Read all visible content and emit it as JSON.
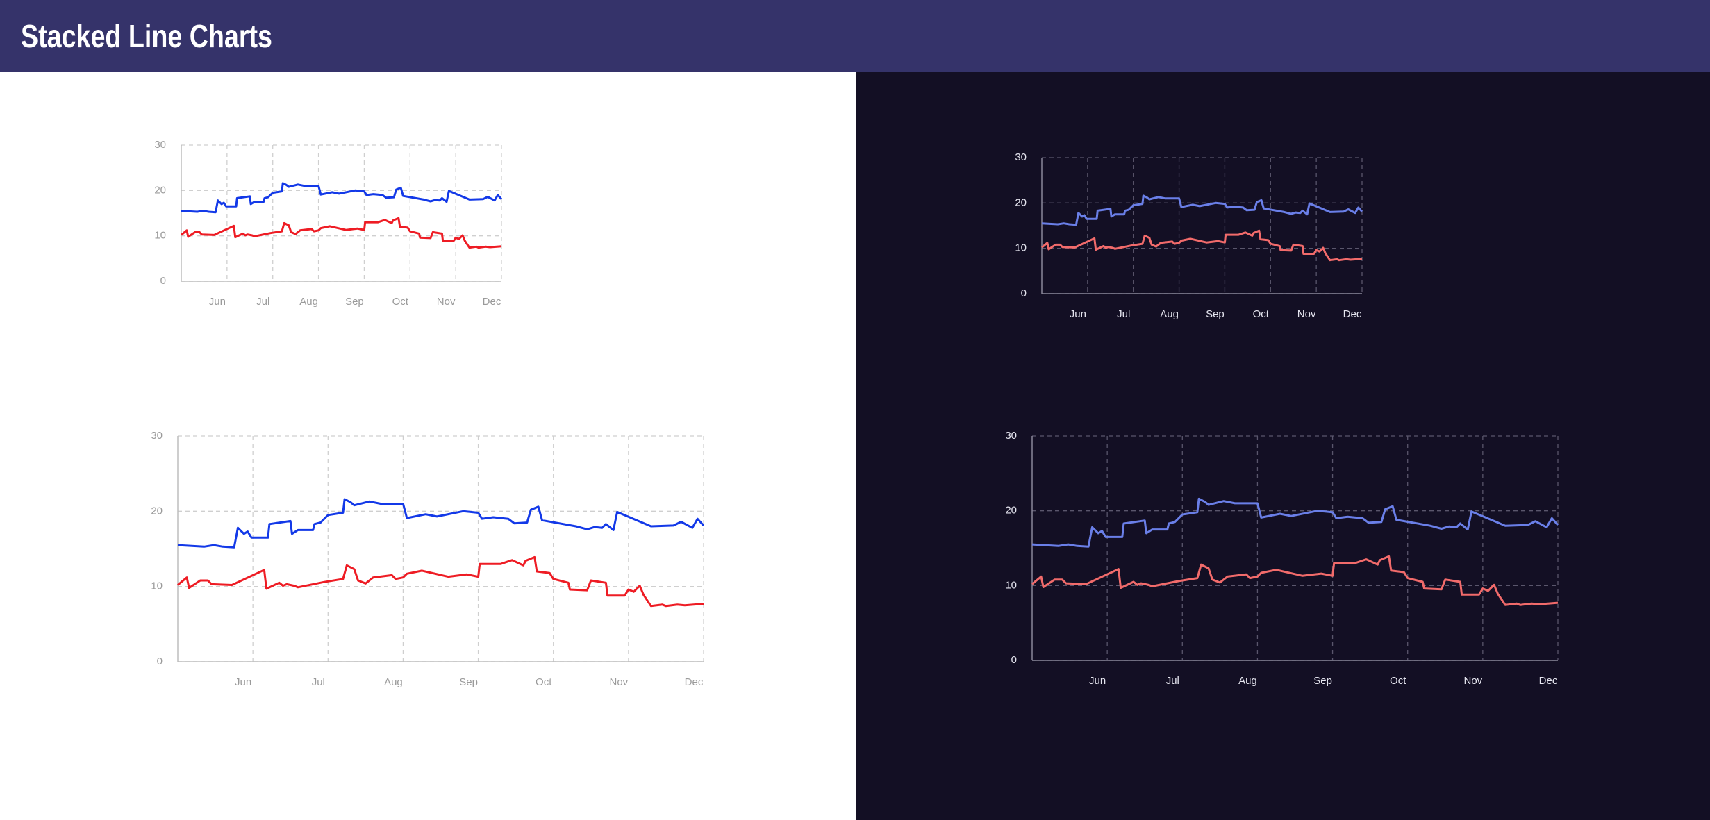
{
  "header": {
    "title": "Stacked Line Charts"
  },
  "chart_data": [
    {
      "type": "line",
      "xlim": [
        5,
        12
      ],
      "ylim": [
        0,
        30
      ],
      "yticks": [
        0,
        10,
        20,
        30
      ],
      "grid": true,
      "xticks": [
        {
          "value": 6,
          "label": "Jun"
        },
        {
          "value": 7,
          "label": "Jul"
        },
        {
          "value": 8,
          "label": "Aug"
        },
        {
          "value": 9,
          "label": "Sep"
        },
        {
          "value": 10,
          "label": "Oct"
        },
        {
          "value": 11,
          "label": "Nov"
        },
        {
          "value": 12,
          "label": "Dec"
        }
      ],
      "series": [
        {
          "color": "#1339e8",
          "x": [
            5,
            5.35,
            5.48,
            5.6,
            5.75,
            5.8,
            5.88,
            5.93,
            5.98,
            6.2,
            6.22,
            6.5,
            6.52,
            6.6,
            6.8,
            6.82,
            6.9,
            7,
            7.2,
            7.22,
            7.3,
            7.35,
            7.55,
            7.7,
            8,
            8.05,
            8.3,
            8.45,
            8.8,
            9,
            9.05,
            9.2,
            9.4,
            9.48,
            9.65,
            9.7,
            9.8,
            9.85,
            10.3,
            10.45,
            10.55,
            10.65,
            10.7,
            10.8,
            10.85,
            11.3,
            11.6,
            11.7,
            11.85,
            11.92,
            12
          ],
          "values": [
            15.5,
            15.3,
            15.5,
            15.3,
            15.2,
            17.8,
            17,
            17.3,
            16.5,
            16.5,
            18.3,
            18.7,
            17,
            17.5,
            17.5,
            18.3,
            18.5,
            19.5,
            19.8,
            21.6,
            21.2,
            20.8,
            21.3,
            21,
            21,
            19.1,
            19.6,
            19.3,
            20,
            19.8,
            19,
            19.2,
            19,
            18.4,
            18.5,
            20.2,
            20.6,
            18.8,
            18,
            17.6,
            17.9,
            17.8,
            18.3,
            17.5,
            19.9,
            18,
            18.1,
            18.6,
            17.8,
            19,
            18.1
          ]
        },
        {
          "color": "#ee1c24",
          "x": [
            5,
            5.12,
            5.15,
            5.3,
            5.4,
            5.45,
            5.72,
            6.15,
            6.18,
            6.35,
            6.4,
            6.45,
            6.55,
            6.6,
            6.95,
            7.2,
            7.25,
            7.35,
            7.4,
            7.5,
            7.6,
            7.85,
            7.9,
            8,
            8.05,
            8.25,
            8.6,
            8.85,
            9,
            9.02,
            9.3,
            9.45,
            9.6,
            9.63,
            9.75,
            9.78,
            9.95,
            10,
            10.2,
            10.22,
            10.45,
            10.5,
            10.7,
            10.72,
            10.95,
            11,
            11.07,
            11.15,
            11.2,
            11.3,
            11.45,
            11.5,
            11.65,
            11.75,
            12
          ],
          "values": [
            10.2,
            11.2,
            9.8,
            10.8,
            10.8,
            10.3,
            10.2,
            12.2,
            9.7,
            10.5,
            10.1,
            10.3,
            10.1,
            9.9,
            10.6,
            11,
            12.8,
            12.3,
            10.8,
            10.4,
            11.2,
            11.5,
            11,
            11.2,
            11.7,
            12.1,
            11.3,
            11.6,
            11.3,
            13,
            13,
            13.5,
            12.8,
            13.4,
            13.9,
            12,
            11.8,
            11,
            10.5,
            9.6,
            9.5,
            10.8,
            10.5,
            8.8,
            8.8,
            9.6,
            9.3,
            10.1,
            8.9,
            7.4,
            7.6,
            7.4,
            7.6,
            7.5,
            7.7
          ]
        }
      ]
    },
    {
      "type": "line",
      "xlim": [
        5,
        12
      ],
      "ylim": [
        0,
        30
      ],
      "yticks": [
        0,
        10,
        20,
        30
      ],
      "grid": true,
      "xticks": [
        {
          "value": 6,
          "label": "Jun"
        },
        {
          "value": 7,
          "label": "Jul"
        },
        {
          "value": 8,
          "label": "Aug"
        },
        {
          "value": 9,
          "label": "Sep"
        },
        {
          "value": 10,
          "label": "Oct"
        },
        {
          "value": 11,
          "label": "Nov"
        },
        {
          "value": 12,
          "label": "Dec"
        }
      ],
      "series": [
        {
          "color": "#1339e8",
          "x": [
            5,
            5.35,
            5.48,
            5.6,
            5.75,
            5.8,
            5.88,
            5.93,
            5.98,
            6.2,
            6.22,
            6.5,
            6.52,
            6.6,
            6.8,
            6.82,
            6.9,
            7,
            7.2,
            7.22,
            7.3,
            7.35,
            7.55,
            7.7,
            8,
            8.05,
            8.3,
            8.45,
            8.8,
            9,
            9.05,
            9.2,
            9.4,
            9.48,
            9.65,
            9.7,
            9.8,
            9.85,
            10.3,
            10.45,
            10.55,
            10.65,
            10.7,
            10.8,
            10.85,
            11.3,
            11.6,
            11.7,
            11.85,
            11.92,
            12
          ],
          "values": [
            15.5,
            15.3,
            15.5,
            15.3,
            15.2,
            17.8,
            17,
            17.3,
            16.5,
            16.5,
            18.3,
            18.7,
            17,
            17.5,
            17.5,
            18.3,
            18.5,
            19.5,
            19.8,
            21.6,
            21.2,
            20.8,
            21.3,
            21,
            21,
            19.1,
            19.6,
            19.3,
            20,
            19.8,
            19,
            19.2,
            19,
            18.4,
            18.5,
            20.2,
            20.6,
            18.8,
            18,
            17.6,
            17.9,
            17.8,
            18.3,
            17.5,
            19.9,
            18,
            18.1,
            18.6,
            17.8,
            19,
            18.1
          ]
        },
        {
          "color": "#ee1c24",
          "x": [
            5,
            5.12,
            5.15,
            5.3,
            5.4,
            5.45,
            5.72,
            6.15,
            6.18,
            6.35,
            6.4,
            6.45,
            6.55,
            6.6,
            6.95,
            7.2,
            7.25,
            7.35,
            7.4,
            7.5,
            7.6,
            7.85,
            7.9,
            8,
            8.05,
            8.25,
            8.6,
            8.85,
            9,
            9.02,
            9.3,
            9.45,
            9.6,
            9.63,
            9.75,
            9.78,
            9.95,
            10,
            10.2,
            10.22,
            10.45,
            10.5,
            10.7,
            10.72,
            10.95,
            11,
            11.07,
            11.15,
            11.2,
            11.3,
            11.45,
            11.5,
            11.65,
            11.75,
            12
          ],
          "values": [
            10.2,
            11.2,
            9.8,
            10.8,
            10.8,
            10.3,
            10.2,
            12.2,
            9.7,
            10.5,
            10.1,
            10.3,
            10.1,
            9.9,
            10.6,
            11,
            12.8,
            12.3,
            10.8,
            10.4,
            11.2,
            11.5,
            11,
            11.2,
            11.7,
            12.1,
            11.3,
            11.6,
            11.3,
            13,
            13,
            13.5,
            12.8,
            13.4,
            13.9,
            12,
            11.8,
            11,
            10.5,
            9.6,
            9.5,
            10.8,
            10.5,
            8.8,
            8.8,
            9.6,
            9.3,
            10.1,
            8.9,
            7.4,
            7.6,
            7.4,
            7.6,
            7.5,
            7.7
          ]
        }
      ]
    },
    {
      "type": "line",
      "xlim": [
        5,
        12
      ],
      "ylim": [
        0,
        30
      ],
      "yticks": [
        0,
        10,
        20,
        30
      ],
      "grid": true,
      "xticks": [
        {
          "value": 6,
          "label": "Jun"
        },
        {
          "value": 7,
          "label": "Jul"
        },
        {
          "value": 8,
          "label": "Aug"
        },
        {
          "value": 9,
          "label": "Sep"
        },
        {
          "value": 10,
          "label": "Oct"
        },
        {
          "value": 11,
          "label": "Nov"
        },
        {
          "value": 12,
          "label": "Dec"
        }
      ],
      "series": [
        {
          "color": "#6a7fe8",
          "x": [
            5,
            5.35,
            5.48,
            5.6,
            5.75,
            5.8,
            5.88,
            5.93,
            5.98,
            6.2,
            6.22,
            6.5,
            6.52,
            6.6,
            6.8,
            6.82,
            6.9,
            7,
            7.2,
            7.22,
            7.3,
            7.35,
            7.55,
            7.7,
            8,
            8.05,
            8.3,
            8.45,
            8.8,
            9,
            9.05,
            9.2,
            9.4,
            9.48,
            9.65,
            9.7,
            9.8,
            9.85,
            10.3,
            10.45,
            10.55,
            10.65,
            10.7,
            10.8,
            10.85,
            11.3,
            11.6,
            11.7,
            11.85,
            11.92,
            12
          ],
          "values": [
            15.5,
            15.3,
            15.5,
            15.3,
            15.2,
            17.8,
            17,
            17.3,
            16.5,
            16.5,
            18.3,
            18.7,
            17,
            17.5,
            17.5,
            18.3,
            18.5,
            19.5,
            19.8,
            21.6,
            21.2,
            20.8,
            21.3,
            21,
            21,
            19.1,
            19.6,
            19.3,
            20,
            19.8,
            19,
            19.2,
            19,
            18.4,
            18.5,
            20.2,
            20.6,
            18.8,
            18,
            17.6,
            17.9,
            17.8,
            18.3,
            17.5,
            19.9,
            18,
            18.1,
            18.6,
            17.8,
            19,
            18.1
          ]
        },
        {
          "color": "#f26b6b",
          "x": [
            5,
            5.12,
            5.15,
            5.3,
            5.4,
            5.45,
            5.72,
            6.15,
            6.18,
            6.35,
            6.4,
            6.45,
            6.55,
            6.6,
            6.95,
            7.2,
            7.25,
            7.35,
            7.4,
            7.5,
            7.6,
            7.85,
            7.9,
            8,
            8.05,
            8.25,
            8.6,
            8.85,
            9,
            9.02,
            9.3,
            9.45,
            9.6,
            9.63,
            9.75,
            9.78,
            9.95,
            10,
            10.2,
            10.22,
            10.45,
            10.5,
            10.7,
            10.72,
            10.95,
            11,
            11.07,
            11.15,
            11.2,
            11.3,
            11.45,
            11.5,
            11.65,
            11.75,
            12
          ],
          "values": [
            10.2,
            11.2,
            9.8,
            10.8,
            10.8,
            10.3,
            10.2,
            12.2,
            9.7,
            10.5,
            10.1,
            10.3,
            10.1,
            9.9,
            10.6,
            11,
            12.8,
            12.3,
            10.8,
            10.4,
            11.2,
            11.5,
            11,
            11.2,
            11.7,
            12.1,
            11.3,
            11.6,
            11.3,
            13,
            13,
            13.5,
            12.8,
            13.4,
            13.9,
            12,
            11.8,
            11,
            10.5,
            9.6,
            9.5,
            10.8,
            10.5,
            8.8,
            8.8,
            9.6,
            9.3,
            10.1,
            8.9,
            7.4,
            7.6,
            7.4,
            7.6,
            7.5,
            7.7
          ]
        }
      ]
    },
    {
      "type": "line",
      "xlim": [
        5,
        12
      ],
      "ylim": [
        0,
        30
      ],
      "yticks": [
        0,
        10,
        20,
        30
      ],
      "grid": true,
      "xticks": [
        {
          "value": 6,
          "label": "Jun"
        },
        {
          "value": 7,
          "label": "Jul"
        },
        {
          "value": 8,
          "label": "Aug"
        },
        {
          "value": 9,
          "label": "Sep"
        },
        {
          "value": 10,
          "label": "Oct"
        },
        {
          "value": 11,
          "label": "Nov"
        },
        {
          "value": 12,
          "label": "Dec"
        }
      ],
      "series": [
        {
          "color": "#6a7fe8",
          "x": [
            5,
            5.35,
            5.48,
            5.6,
            5.75,
            5.8,
            5.88,
            5.93,
            5.98,
            6.2,
            6.22,
            6.5,
            6.52,
            6.6,
            6.8,
            6.82,
            6.9,
            7,
            7.2,
            7.22,
            7.3,
            7.35,
            7.55,
            7.7,
            8,
            8.05,
            8.3,
            8.45,
            8.8,
            9,
            9.05,
            9.2,
            9.4,
            9.48,
            9.65,
            9.7,
            9.8,
            9.85,
            10.3,
            10.45,
            10.55,
            10.65,
            10.7,
            10.8,
            10.85,
            11.3,
            11.6,
            11.7,
            11.85,
            11.92,
            12
          ],
          "values": [
            15.5,
            15.3,
            15.5,
            15.3,
            15.2,
            17.8,
            17,
            17.3,
            16.5,
            16.5,
            18.3,
            18.7,
            17,
            17.5,
            17.5,
            18.3,
            18.5,
            19.5,
            19.8,
            21.6,
            21.2,
            20.8,
            21.3,
            21,
            21,
            19.1,
            19.6,
            19.3,
            20,
            19.8,
            19,
            19.2,
            19,
            18.4,
            18.5,
            20.2,
            20.6,
            18.8,
            18,
            17.6,
            17.9,
            17.8,
            18.3,
            17.5,
            19.9,
            18,
            18.1,
            18.6,
            17.8,
            19,
            18.1
          ]
        },
        {
          "color": "#f26b6b",
          "x": [
            5,
            5.12,
            5.15,
            5.3,
            5.4,
            5.45,
            5.72,
            6.15,
            6.18,
            6.35,
            6.4,
            6.45,
            6.55,
            6.6,
            6.95,
            7.2,
            7.25,
            7.35,
            7.4,
            7.5,
            7.6,
            7.85,
            7.9,
            8,
            8.05,
            8.25,
            8.6,
            8.85,
            9,
            9.02,
            9.3,
            9.45,
            9.6,
            9.63,
            9.75,
            9.78,
            9.95,
            10,
            10.2,
            10.22,
            10.45,
            10.5,
            10.7,
            10.72,
            10.95,
            11,
            11.07,
            11.15,
            11.2,
            11.3,
            11.45,
            11.5,
            11.65,
            11.75,
            12
          ],
          "values": [
            10.2,
            11.2,
            9.8,
            10.8,
            10.8,
            10.3,
            10.2,
            12.2,
            9.7,
            10.5,
            10.1,
            10.3,
            10.1,
            9.9,
            10.6,
            11,
            12.8,
            12.3,
            10.8,
            10.4,
            11.2,
            11.5,
            11,
            11.2,
            11.7,
            12.1,
            11.3,
            11.6,
            11.3,
            13,
            13,
            13.5,
            12.8,
            13.4,
            13.9,
            12,
            11.8,
            11,
            10.5,
            9.6,
            9.5,
            10.8,
            10.5,
            8.8,
            8.8,
            9.6,
            9.3,
            10.1,
            8.9,
            7.4,
            7.6,
            7.4,
            7.6,
            7.5,
            7.7
          ]
        }
      ]
    }
  ]
}
